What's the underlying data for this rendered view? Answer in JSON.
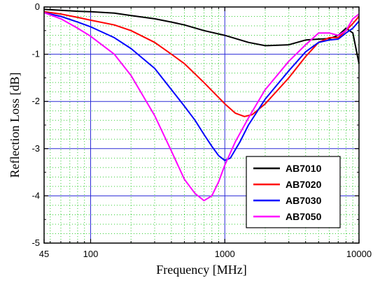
{
  "chart_data": {
    "type": "line",
    "title": "",
    "xlabel": "Frequency [MHz]",
    "ylabel": "Reflection  Loss [dB]",
    "xscale": "log",
    "xlim": [
      45,
      10000
    ],
    "ylim": [
      -5,
      0
    ],
    "xticks": [
      {
        "value": 45,
        "label": "45"
      },
      {
        "value": 100,
        "label": "100"
      },
      {
        "value": 1000,
        "label": "1000"
      },
      {
        "value": 10000,
        "label": "10000"
      }
    ],
    "yticks": [
      {
        "value": 0,
        "label": "0"
      },
      {
        "value": -1,
        "label": "-1"
      },
      {
        "value": -2,
        "label": "-2"
      },
      {
        "value": -3,
        "label": "-3"
      },
      {
        "value": -4,
        "label": "-4"
      },
      {
        "value": -5,
        "label": "-5"
      }
    ],
    "grid": {
      "major": true,
      "minor": true,
      "major_color": "#2b2bd6",
      "minor_color": "#33cc33"
    },
    "legend_position": "bottom-right",
    "series": [
      {
        "name": "AB7010",
        "color": "#000000",
        "points": [
          [
            45,
            -0.05
          ],
          [
            60,
            -0.07
          ],
          [
            80,
            -0.09
          ],
          [
            100,
            -0.1
          ],
          [
            150,
            -0.13
          ],
          [
            200,
            -0.18
          ],
          [
            300,
            -0.25
          ],
          [
            400,
            -0.32
          ],
          [
            500,
            -0.38
          ],
          [
            700,
            -0.5
          ],
          [
            1000,
            -0.6
          ],
          [
            1500,
            -0.75
          ],
          [
            2000,
            -0.82
          ],
          [
            3000,
            -0.8
          ],
          [
            4000,
            -0.7
          ],
          [
            5000,
            -0.68
          ],
          [
            6000,
            -0.67
          ],
          [
            7000,
            -0.6
          ],
          [
            8000,
            -0.45
          ],
          [
            9000,
            -0.55
          ],
          [
            10000,
            -1.2
          ]
        ]
      },
      {
        "name": "AB7020",
        "color": "#ff0000",
        "points": [
          [
            45,
            -0.1
          ],
          [
            60,
            -0.15
          ],
          [
            80,
            -0.22
          ],
          [
            100,
            -0.28
          ],
          [
            150,
            -0.38
          ],
          [
            200,
            -0.5
          ],
          [
            300,
            -0.75
          ],
          [
            400,
            -1.0
          ],
          [
            500,
            -1.2
          ],
          [
            700,
            -1.6
          ],
          [
            1000,
            -2.05
          ],
          [
            1200,
            -2.25
          ],
          [
            1400,
            -2.32
          ],
          [
            1600,
            -2.28
          ],
          [
            2000,
            -2.05
          ],
          [
            3000,
            -1.5
          ],
          [
            4000,
            -1.05
          ],
          [
            5000,
            -0.75
          ],
          [
            6000,
            -0.65
          ],
          [
            7000,
            -0.65
          ],
          [
            8000,
            -0.5
          ],
          [
            9000,
            -0.35
          ],
          [
            10000,
            -0.2
          ]
        ]
      },
      {
        "name": "AB7030",
        "color": "#0000ff",
        "points": [
          [
            45,
            -0.12
          ],
          [
            60,
            -0.2
          ],
          [
            80,
            -0.32
          ],
          [
            100,
            -0.42
          ],
          [
            150,
            -0.65
          ],
          [
            200,
            -0.88
          ],
          [
            300,
            -1.3
          ],
          [
            400,
            -1.75
          ],
          [
            500,
            -2.1
          ],
          [
            600,
            -2.4
          ],
          [
            700,
            -2.7
          ],
          [
            800,
            -2.95
          ],
          [
            900,
            -3.15
          ],
          [
            1000,
            -3.25
          ],
          [
            1100,
            -3.2
          ],
          [
            1300,
            -2.85
          ],
          [
            1500,
            -2.5
          ],
          [
            2000,
            -1.95
          ],
          [
            3000,
            -1.35
          ],
          [
            4000,
            -0.95
          ],
          [
            5000,
            -0.75
          ],
          [
            6000,
            -0.7
          ],
          [
            7000,
            -0.68
          ],
          [
            8000,
            -0.55
          ],
          [
            9000,
            -0.45
          ],
          [
            10000,
            -0.3
          ]
        ]
      },
      {
        "name": "AB7050",
        "color": "#ff00ff",
        "points": [
          [
            45,
            -0.12
          ],
          [
            60,
            -0.25
          ],
          [
            80,
            -0.45
          ],
          [
            100,
            -0.62
          ],
          [
            150,
            -1.0
          ],
          [
            200,
            -1.45
          ],
          [
            300,
            -2.3
          ],
          [
            400,
            -3.05
          ],
          [
            500,
            -3.65
          ],
          [
            600,
            -3.95
          ],
          [
            700,
            -4.1
          ],
          [
            800,
            -4.0
          ],
          [
            900,
            -3.7
          ],
          [
            1000,
            -3.35
          ],
          [
            1200,
            -2.85
          ],
          [
            1500,
            -2.35
          ],
          [
            2000,
            -1.75
          ],
          [
            3000,
            -1.15
          ],
          [
            4000,
            -0.8
          ],
          [
            5000,
            -0.55
          ],
          [
            6000,
            -0.55
          ],
          [
            7000,
            -0.6
          ],
          [
            8000,
            -0.5
          ],
          [
            9000,
            -0.25
          ],
          [
            10000,
            -0.15
          ]
        ]
      }
    ]
  }
}
